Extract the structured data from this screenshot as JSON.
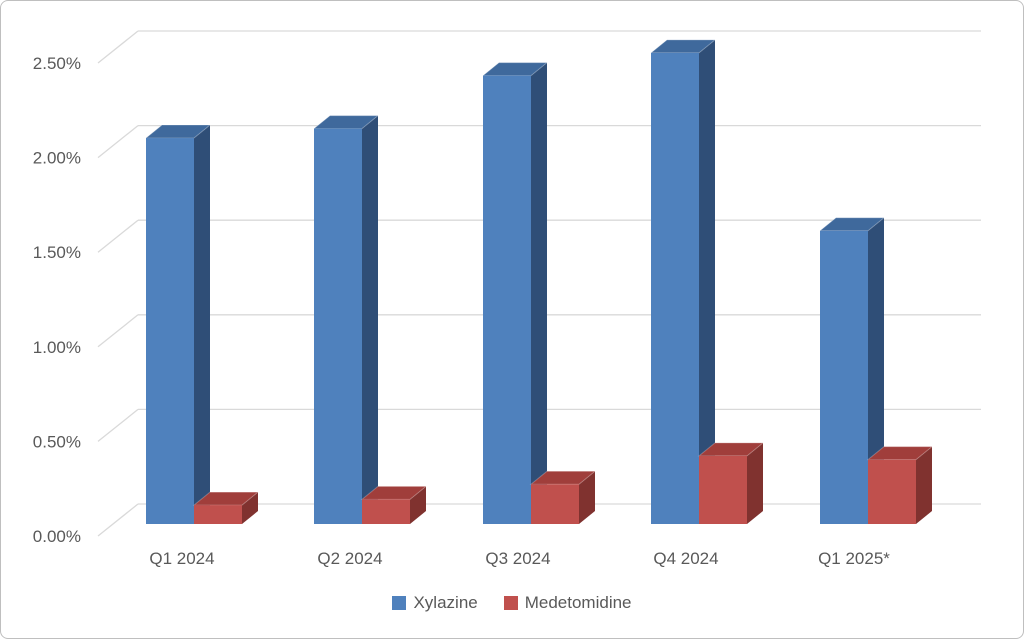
{
  "frame": {
    "background": "#FFFFFF",
    "border_color": "#BFBFBF"
  },
  "chart_data": {
    "type": "bar",
    "subtype": "3d-column",
    "title": "",
    "xlabel": "",
    "ylabel": "",
    "categories": [
      "Q1 2024",
      "Q2 2024",
      "Q3 2024",
      "Q4 2024",
      "Q1 2025*"
    ],
    "series": [
      {
        "name": "Xylazine",
        "values": [
          2.04,
          2.09,
          2.37,
          2.49,
          1.55
        ],
        "color": "#4F81BD",
        "color_top": "#3F699C",
        "color_side": "#2F4E77"
      },
      {
        "name": "Medetomidine",
        "values": [
          0.1,
          0.13,
          0.21,
          0.36,
          0.34
        ],
        "color": "#C0504D",
        "color_top": "#A03E3B",
        "color_side": "#80322F"
      }
    ],
    "ylim": [
      0,
      2.5
    ],
    "ytick_step": 0.5,
    "ytick_labels": [
      "0.00%",
      "0.50%",
      "1.00%",
      "1.50%",
      "2.00%",
      "2.50%"
    ],
    "grid": true,
    "gridline_color": "#D9D9D9",
    "axis_text_color": "#595959",
    "legend_position": "bottom"
  }
}
